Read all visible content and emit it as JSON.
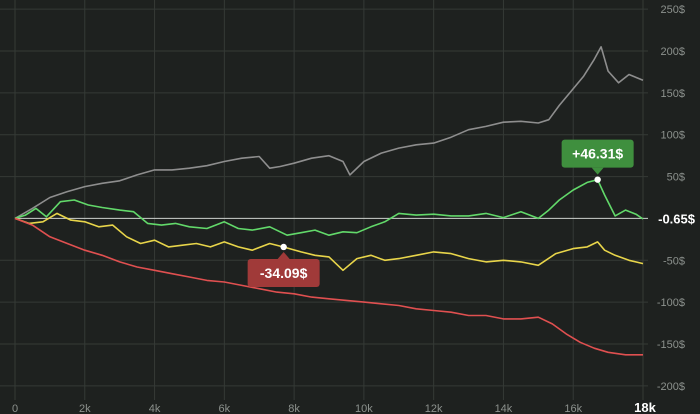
{
  "chart_data": {
    "type": "line",
    "xlim": [
      0,
      18000
    ],
    "ylim": [
      -205,
      255
    ],
    "grid": true,
    "x_ticks": [
      {
        "value": 0,
        "label": "0"
      },
      {
        "value": 2000,
        "label": "2k"
      },
      {
        "value": 4000,
        "label": "4k"
      },
      {
        "value": 6000,
        "label": "6k"
      },
      {
        "value": 8000,
        "label": "8k"
      },
      {
        "value": 10000,
        "label": "10k"
      },
      {
        "value": 12000,
        "label": "12k"
      },
      {
        "value": 14000,
        "label": "14k"
      },
      {
        "value": 16000,
        "label": "16k"
      },
      {
        "value": 18000,
        "label": "18k"
      }
    ],
    "y_ticks": [
      {
        "value": 250,
        "label": "250$"
      },
      {
        "value": 200,
        "label": "200$"
      },
      {
        "value": 150,
        "label": "150$"
      },
      {
        "value": 100,
        "label": "100$"
      },
      {
        "value": 50,
        "label": "50$"
      },
      {
        "value": -50,
        "label": "-50$"
      },
      {
        "value": -100,
        "label": "-100$"
      },
      {
        "value": -150,
        "label": "-150$"
      },
      {
        "value": -200,
        "label": "-200$"
      }
    ],
    "current_value": {
      "value": -0.65,
      "label": "-0.65$"
    },
    "series": [
      {
        "color": "#8e8e8e",
        "points": [
          [
            0,
            0
          ],
          [
            500,
            12
          ],
          [
            1000,
            25
          ],
          [
            1500,
            32
          ],
          [
            2000,
            38
          ],
          [
            2500,
            42
          ],
          [
            3000,
            45
          ],
          [
            3500,
            52
          ],
          [
            4000,
            58
          ],
          [
            4500,
            58
          ],
          [
            5000,
            60
          ],
          [
            5500,
            63
          ],
          [
            6000,
            68
          ],
          [
            6500,
            72
          ],
          [
            7000,
            74
          ],
          [
            7300,
            60
          ],
          [
            7600,
            62
          ],
          [
            8000,
            66
          ],
          [
            8500,
            72
          ],
          [
            9000,
            75
          ],
          [
            9400,
            68
          ],
          [
            9600,
            52
          ],
          [
            10000,
            68
          ],
          [
            10500,
            78
          ],
          [
            11000,
            84
          ],
          [
            11500,
            88
          ],
          [
            12000,
            90
          ],
          [
            12500,
            97
          ],
          [
            13000,
            106
          ],
          [
            13500,
            110
          ],
          [
            14000,
            115
          ],
          [
            14500,
            116
          ],
          [
            15000,
            114
          ],
          [
            15300,
            118
          ],
          [
            15600,
            135
          ],
          [
            16000,
            155
          ],
          [
            16300,
            170
          ],
          [
            16600,
            190
          ],
          [
            16800,
            205
          ],
          [
            17000,
            176
          ],
          [
            17300,
            162
          ],
          [
            17600,
            172
          ],
          [
            18000,
            165
          ]
        ]
      },
      {
        "color": "#62d96a",
        "points": [
          [
            0,
            0
          ],
          [
            300,
            4
          ],
          [
            600,
            12
          ],
          [
            900,
            2
          ],
          [
            1300,
            20
          ],
          [
            1700,
            22
          ],
          [
            2100,
            16
          ],
          [
            2500,
            13
          ],
          [
            3000,
            10
          ],
          [
            3400,
            8
          ],
          [
            3800,
            -6
          ],
          [
            4200,
            -8
          ],
          [
            4600,
            -6
          ],
          [
            5000,
            -10
          ],
          [
            5500,
            -12
          ],
          [
            6000,
            -4
          ],
          [
            6400,
            -12
          ],
          [
            6800,
            -14
          ],
          [
            7300,
            -10
          ],
          [
            7800,
            -20
          ],
          [
            8200,
            -17
          ],
          [
            8600,
            -14
          ],
          [
            9000,
            -20
          ],
          [
            9400,
            -16
          ],
          [
            9800,
            -17
          ],
          [
            10200,
            -10
          ],
          [
            10600,
            -4
          ],
          [
            11000,
            6
          ],
          [
            11500,
            4
          ],
          [
            12000,
            5
          ],
          [
            12500,
            3
          ],
          [
            13000,
            3
          ],
          [
            13500,
            6
          ],
          [
            14000,
            1
          ],
          [
            14500,
            8
          ],
          [
            15000,
            0
          ],
          [
            15300,
            10
          ],
          [
            15600,
            22
          ],
          [
            16000,
            34
          ],
          [
            16400,
            43
          ],
          [
            16700,
            46.31
          ],
          [
            16900,
            28
          ],
          [
            17200,
            3
          ],
          [
            17500,
            10
          ],
          [
            17800,
            5
          ],
          [
            18000,
            -0.65
          ]
        ]
      },
      {
        "color": "#e8d54a",
        "points": [
          [
            0,
            0
          ],
          [
            400,
            -6
          ],
          [
            800,
            -4
          ],
          [
            1200,
            6
          ],
          [
            1600,
            -2
          ],
          [
            2000,
            -4
          ],
          [
            2400,
            -10
          ],
          [
            2800,
            -8
          ],
          [
            3200,
            -22
          ],
          [
            3600,
            -30
          ],
          [
            4000,
            -26
          ],
          [
            4400,
            -34
          ],
          [
            4800,
            -32
          ],
          [
            5200,
            -30
          ],
          [
            5600,
            -34
          ],
          [
            6000,
            -28
          ],
          [
            6400,
            -34
          ],
          [
            6800,
            -38
          ],
          [
            7300,
            -30
          ],
          [
            7700,
            -34.09
          ],
          [
            8200,
            -40
          ],
          [
            8600,
            -44
          ],
          [
            9000,
            -46
          ],
          [
            9400,
            -62
          ],
          [
            9800,
            -48
          ],
          [
            10200,
            -44
          ],
          [
            10600,
            -50
          ],
          [
            11000,
            -48
          ],
          [
            11500,
            -44
          ],
          [
            12000,
            -40
          ],
          [
            12500,
            -42
          ],
          [
            13000,
            -48
          ],
          [
            13500,
            -52
          ],
          [
            14000,
            -50
          ],
          [
            14500,
            -52
          ],
          [
            15000,
            -56
          ],
          [
            15500,
            -42
          ],
          [
            16000,
            -36
          ],
          [
            16400,
            -34
          ],
          [
            16700,
            -28
          ],
          [
            16900,
            -38
          ],
          [
            17200,
            -44
          ],
          [
            17600,
            -50
          ],
          [
            18000,
            -54
          ]
        ]
      },
      {
        "color": "#e05050",
        "points": [
          [
            0,
            0
          ],
          [
            500,
            -8
          ],
          [
            1000,
            -22
          ],
          [
            1500,
            -30
          ],
          [
            2000,
            -38
          ],
          [
            2500,
            -44
          ],
          [
            3000,
            -52
          ],
          [
            3500,
            -58
          ],
          [
            4000,
            -62
          ],
          [
            4500,
            -66
          ],
          [
            5000,
            -70
          ],
          [
            5500,
            -74
          ],
          [
            6000,
            -76
          ],
          [
            6500,
            -80
          ],
          [
            7000,
            -84
          ],
          [
            7500,
            -88
          ],
          [
            8000,
            -90
          ],
          [
            8500,
            -94
          ],
          [
            9000,
            -96
          ],
          [
            9500,
            -98
          ],
          [
            10000,
            -100
          ],
          [
            10500,
            -102
          ],
          [
            11000,
            -104
          ],
          [
            11500,
            -108
          ],
          [
            12000,
            -110
          ],
          [
            12500,
            -112
          ],
          [
            13000,
            -116
          ],
          [
            13500,
            -116
          ],
          [
            14000,
            -120
          ],
          [
            14500,
            -120
          ],
          [
            15000,
            -118
          ],
          [
            15400,
            -126
          ],
          [
            15800,
            -138
          ],
          [
            16200,
            -148
          ],
          [
            16600,
            -155
          ],
          [
            17000,
            -160
          ],
          [
            17500,
            -163
          ],
          [
            18000,
            -163
          ]
        ]
      }
    ],
    "annotations": [
      {
        "x": 16700,
        "y": 46.31,
        "label": "+46.31$",
        "color": "#3f8f3e",
        "position": "above"
      },
      {
        "x": 7700,
        "y": -34.09,
        "label": "-34.09$",
        "color": "#a03a39",
        "position": "below"
      }
    ]
  }
}
